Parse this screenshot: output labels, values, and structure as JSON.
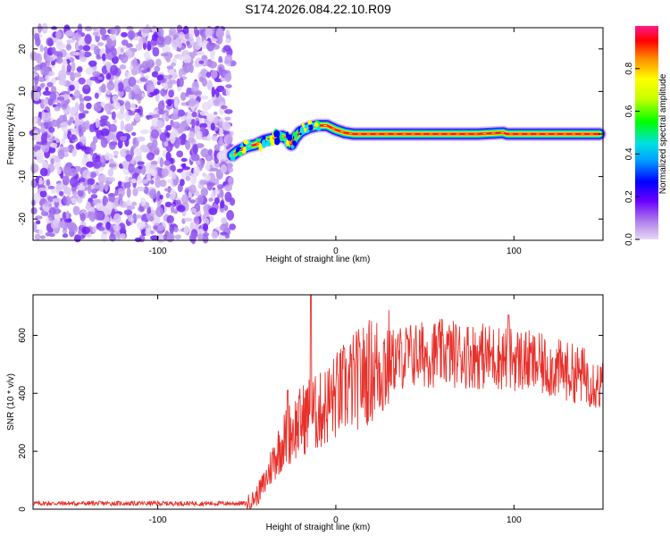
{
  "title": "S174.2026.084.22.10.R09",
  "chart_data": [
    {
      "type": "heatmap",
      "name": "spectrogram",
      "xlabel": "Height of straight line (km)",
      "ylabel": "Frequency (Hz)",
      "xlim": [
        -170,
        150
      ],
      "ylim": [
        -25,
        25
      ],
      "xticks": [
        -100,
        0,
        100
      ],
      "yticks": [
        -20,
        -10,
        0,
        10,
        20
      ],
      "noise_region_x": [
        -170,
        -58
      ],
      "trace": {
        "x": [
          -58,
          -55,
          -50,
          -45,
          -40,
          -35,
          -30,
          -26,
          -25,
          -23,
          -20,
          -15,
          -10,
          -5,
          0,
          5,
          10,
          20,
          40,
          60,
          80,
          94,
          96,
          120,
          148
        ],
        "y": [
          -5,
          -4,
          -3,
          -2.5,
          -1.5,
          -1,
          -0.5,
          -1.5,
          -2.5,
          -1,
          0.5,
          1.5,
          2,
          2,
          1,
          0.3,
          0,
          0,
          0,
          0,
          0,
          0.3,
          0,
          0,
          0
        ]
      },
      "colorbar": {
        "label": "Normalized spectral amplitude",
        "ticks": [
          0.0,
          0.2,
          0.4,
          0.6,
          0.8
        ],
        "range": [
          0,
          1
        ]
      }
    },
    {
      "type": "line",
      "name": "snr",
      "xlabel": "Height of straight line (km)",
      "ylabel": "SNR (10 * v/v)",
      "xlim": [
        -170,
        150
      ],
      "ylim": [
        0,
        740
      ],
      "xticks": [
        -100,
        0,
        100
      ],
      "yticks": [
        0,
        200,
        400,
        600
      ],
      "color": "#e8302a",
      "envelope": {
        "x": [
          -170,
          -50,
          -45,
          -40,
          -35,
          -30,
          -25,
          -20,
          -15,
          -10,
          -5,
          0,
          10,
          20,
          30,
          40,
          60,
          80,
          100,
          120,
          140,
          150
        ],
        "y": [
          20,
          20,
          40,
          90,
          170,
          230,
          270,
          300,
          330,
          330,
          360,
          390,
          440,
          480,
          510,
          530,
          540,
          530,
          520,
          490,
          460,
          420
        ]
      },
      "spikes": [
        {
          "x": -14,
          "y": 740
        },
        {
          "x": -27,
          "y": 410
        },
        {
          "x": 97,
          "y": 670
        }
      ]
    }
  ]
}
